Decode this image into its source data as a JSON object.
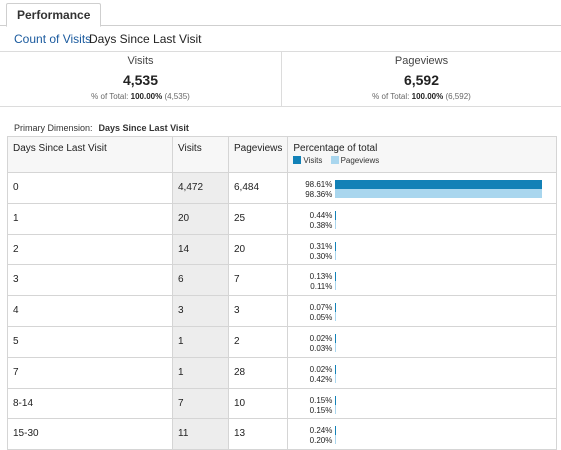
{
  "tabs": {
    "active": "Performance"
  },
  "subtabs": {
    "link": "Count of Visits",
    "current": "Days Since Last Visit"
  },
  "summary": {
    "visits": {
      "title": "Visits",
      "value": "4,535",
      "pct_prefix": "% of Total:",
      "pct_bold": "100.00%",
      "pct_total": "(4,535)"
    },
    "pageviews": {
      "title": "Pageviews",
      "value": "6,592",
      "pct_prefix": "% of Total:",
      "pct_bold": "100.00%",
      "pct_total": "(6,592)"
    }
  },
  "primary_dimension": {
    "label": "Primary Dimension:",
    "value": "Days Since Last Visit"
  },
  "table": {
    "headers": {
      "dim": "Days Since Last Visit",
      "visits": "Visits",
      "pageviews": "Pageviews",
      "pct": "Percentage of total"
    },
    "legend": {
      "visits": "Visits",
      "pageviews": "Pageviews"
    },
    "colors": {
      "visits": "#1281b7",
      "pageviews": "#a9d6ee"
    },
    "rows": [
      {
        "dim": "0",
        "visits": "4,472",
        "pageviews": "6,484",
        "pct_visits": "98.61%",
        "pct_pageviews": "98.36%",
        "v": 98.61,
        "p": 98.36
      },
      {
        "dim": "1",
        "visits": "20",
        "pageviews": "25",
        "pct_visits": "0.44%",
        "pct_pageviews": "0.38%",
        "v": 0.44,
        "p": 0.38
      },
      {
        "dim": "2",
        "visits": "14",
        "pageviews": "20",
        "pct_visits": "0.31%",
        "pct_pageviews": "0.30%",
        "v": 0.31,
        "p": 0.3
      },
      {
        "dim": "3",
        "visits": "6",
        "pageviews": "7",
        "pct_visits": "0.13%",
        "pct_pageviews": "0.11%",
        "v": 0.13,
        "p": 0.11
      },
      {
        "dim": "4",
        "visits": "3",
        "pageviews": "3",
        "pct_visits": "0.07%",
        "pct_pageviews": "0.05%",
        "v": 0.07,
        "p": 0.05
      },
      {
        "dim": "5",
        "visits": "1",
        "pageviews": "2",
        "pct_visits": "0.02%",
        "pct_pageviews": "0.03%",
        "v": 0.02,
        "p": 0.03
      },
      {
        "dim": "7",
        "visits": "1",
        "pageviews": "28",
        "pct_visits": "0.02%",
        "pct_pageviews": "0.42%",
        "v": 0.02,
        "p": 0.42
      },
      {
        "dim": "8-14",
        "visits": "7",
        "pageviews": "10",
        "pct_visits": "0.15%",
        "pct_pageviews": "0.15%",
        "v": 0.15,
        "p": 0.15
      },
      {
        "dim": "15-30",
        "visits": "11",
        "pageviews": "13",
        "pct_visits": "0.24%",
        "pct_pageviews": "0.20%",
        "v": 0.24,
        "p": 0.2
      }
    ]
  }
}
